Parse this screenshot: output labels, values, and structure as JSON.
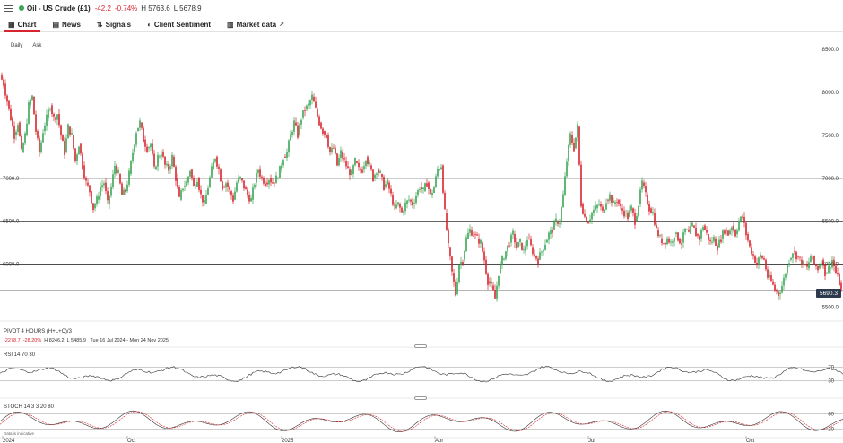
{
  "header": {
    "instrument": "Oil - US Crude (£1)",
    "change": "-42.2",
    "change_pct": "-0.74%",
    "high": "H 5763.6",
    "low": "L 5678.9"
  },
  "tabs": [
    {
      "label": "Chart",
      "icon": "chart-icon",
      "active": true
    },
    {
      "label": "News",
      "icon": "news-icon"
    },
    {
      "label": "Signals",
      "icon": "signals-icon"
    },
    {
      "label": "Client Sentiment",
      "icon": "sentiment-icon"
    },
    {
      "label": "Market data",
      "icon": "market-data-icon",
      "external": true
    }
  ],
  "modes": {
    "daily": "Daily",
    "ask": "Ask"
  },
  "price_tag": "5690.3",
  "pivot": {
    "title": "PIVOT  4 HOURS  (H+L+C)/3",
    "change": "-2278.7",
    "change_pct": "-28.20%",
    "high": "H 8246.2",
    "low": "L 5485.9",
    "range": "Tue 16 Jul 2024 - Mon 24 Nov 2025"
  },
  "rsi": {
    "label": "RSI  14  70  30",
    "levels": [
      "70",
      "30"
    ]
  },
  "stoch": {
    "label": "STOCH  14  3  3  20  80",
    "levels": [
      "80",
      "20"
    ]
  },
  "footer": {
    "note": "Data is indicative"
  },
  "colors": {
    "up": "#3aa655",
    "down": "#d8242c",
    "accent": "#d8242c",
    "tag": "#2d3a4e"
  },
  "chart_data": {
    "type": "candlestick",
    "y_ticks": [
      "8500.0",
      "8000.0",
      "7500.0",
      "7000.0",
      "6500.0",
      "6000.0",
      "5500.0"
    ],
    "ylim": [
      5400,
      8700
    ],
    "horizontal_lines": [
      {
        "value": 7000,
        "label": "7000.0"
      },
      {
        "value": 6500,
        "label": "6500.0"
      },
      {
        "value": 6000,
        "label": "6000.0"
      },
      {
        "value": 5700,
        "label": ""
      }
    ],
    "x_labels": [
      "2024",
      "Oct",
      "2025",
      "Apr",
      "Jul",
      "Oct"
    ],
    "close_path": [
      [
        0,
        8200
      ],
      [
        4,
        8100
      ],
      [
        8,
        7900
      ],
      [
        12,
        7700
      ],
      [
        16,
        7500
      ],
      [
        20,
        7650
      ],
      [
        24,
        7300
      ],
      [
        28,
        7500
      ],
      [
        32,
        7850
      ],
      [
        36,
        7950
      ],
      [
        40,
        7550
      ],
      [
        44,
        7300
      ],
      [
        48,
        7550
      ],
      [
        52,
        7700
      ],
      [
        56,
        7850
      ],
      [
        60,
        7700
      ],
      [
        64,
        7750
      ],
      [
        68,
        7500
      ],
      [
        72,
        7300
      ],
      [
        76,
        7600
      ],
      [
        80,
        7500
      ],
      [
        84,
        7200
      ],
      [
        88,
        7400
      ],
      [
        92,
        7150
      ],
      [
        96,
        6950
      ],
      [
        100,
        6850
      ],
      [
        104,
        6650
      ],
      [
        108,
        6750
      ],
      [
        112,
        6900
      ],
      [
        116,
        6950
      ],
      [
        120,
        6700
      ],
      [
        124,
        6900
      ],
      [
        128,
        7150
      ],
      [
        132,
        7050
      ],
      [
        136,
        6800
      ],
      [
        140,
        6850
      ],
      [
        144,
        7050
      ],
      [
        148,
        7300
      ],
      [
        152,
        7550
      ],
      [
        156,
        7650
      ],
      [
        160,
        7450
      ],
      [
        164,
        7350
      ],
      [
        168,
        7400
      ],
      [
        172,
        7100
      ],
      [
        176,
        7250
      ],
      [
        180,
        7300
      ],
      [
        184,
        7150
      ],
      [
        188,
        7100
      ],
      [
        192,
        7250
      ],
      [
        196,
        7000
      ],
      [
        200,
        6750
      ],
      [
        204,
        6900
      ],
      [
        208,
        6950
      ],
      [
        212,
        7100
      ],
      [
        216,
        6900
      ],
      [
        220,
        7000
      ],
      [
        224,
        6800
      ],
      [
        228,
        6700
      ],
      [
        232,
        6900
      ],
      [
        236,
        7100
      ],
      [
        240,
        7250
      ],
      [
        244,
        7100
      ],
      [
        248,
        6900
      ],
      [
        252,
        6950
      ],
      [
        256,
        6850
      ],
      [
        260,
        6750
      ],
      [
        264,
        6950
      ],
      [
        268,
        7000
      ],
      [
        272,
        6900
      ],
      [
        276,
        6800
      ],
      [
        280,
        6750
      ],
      [
        284,
        6950
      ],
      [
        288,
        7100
      ],
      [
        292,
        7000
      ],
      [
        296,
        6950
      ],
      [
        300,
        7000
      ],
      [
        304,
        6950
      ],
      [
        308,
        7000
      ],
      [
        312,
        7100
      ],
      [
        316,
        7250
      ],
      [
        320,
        7300
      ],
      [
        324,
        7500
      ],
      [
        328,
        7650
      ],
      [
        332,
        7500
      ],
      [
        336,
        7700
      ],
      [
        340,
        7800
      ],
      [
        344,
        7850
      ],
      [
        348,
        7950
      ],
      [
        352,
        7800
      ],
      [
        356,
        7650
      ],
      [
        360,
        7550
      ],
      [
        364,
        7500
      ],
      [
        368,
        7300
      ],
      [
        372,
        7350
      ],
      [
        376,
        7150
      ],
      [
        380,
        7300
      ],
      [
        384,
        7200
      ],
      [
        388,
        7100
      ],
      [
        392,
        7050
      ],
      [
        396,
        7200
      ],
      [
        400,
        7100
      ],
      [
        404,
        7100
      ],
      [
        408,
        7250
      ],
      [
        412,
        7150
      ],
      [
        416,
        7000
      ],
      [
        420,
        7100
      ],
      [
        424,
        7050
      ],
      [
        428,
        6900
      ],
      [
        432,
        6950
      ],
      [
        436,
        6800
      ],
      [
        440,
        6650
      ],
      [
        444,
        6700
      ],
      [
        448,
        6600
      ],
      [
        452,
        6700
      ],
      [
        456,
        6750
      ],
      [
        460,
        6700
      ],
      [
        464,
        6800
      ],
      [
        468,
        6900
      ],
      [
        472,
        6850
      ],
      [
        476,
        6950
      ],
      [
        480,
        6800
      ],
      [
        484,
        6900
      ],
      [
        488,
        7100
      ],
      [
        492,
        7150
      ],
      [
        496,
        6600
      ],
      [
        500,
        6200
      ],
      [
        504,
        5900
      ],
      [
        508,
        5650
      ],
      [
        512,
        6000
      ],
      [
        516,
        6050
      ],
      [
        520,
        6300
      ],
      [
        524,
        6400
      ],
      [
        528,
        6350
      ],
      [
        532,
        6300
      ],
      [
        536,
        6250
      ],
      [
        540,
        6050
      ],
      [
        544,
        5800
      ],
      [
        548,
        5750
      ],
      [
        552,
        5600
      ],
      [
        556,
        5900
      ],
      [
        560,
        6050
      ],
      [
        564,
        6150
      ],
      [
        568,
        6250
      ],
      [
        572,
        6350
      ],
      [
        576,
        6200
      ],
      [
        580,
        6250
      ],
      [
        584,
        6150
      ],
      [
        588,
        6300
      ],
      [
        592,
        6200
      ],
      [
        596,
        6100
      ],
      [
        600,
        6050
      ],
      [
        604,
        6150
      ],
      [
        608,
        6250
      ],
      [
        612,
        6350
      ],
      [
        616,
        6400
      ],
      [
        620,
        6500
      ],
      [
        624,
        6500
      ],
      [
        628,
        6800
      ],
      [
        632,
        7200
      ],
      [
        636,
        7500
      ],
      [
        640,
        7350
      ],
      [
        644,
        7600
      ],
      [
        648,
        6700
      ],
      [
        652,
        6550
      ],
      [
        656,
        6500
      ],
      [
        660,
        6600
      ],
      [
        664,
        6650
      ],
      [
        668,
        6700
      ],
      [
        672,
        6600
      ],
      [
        676,
        6750
      ],
      [
        680,
        6800
      ],
      [
        684,
        6700
      ],
      [
        688,
        6750
      ],
      [
        692,
        6650
      ],
      [
        696,
        6600
      ],
      [
        700,
        6550
      ],
      [
        704,
        6650
      ],
      [
        708,
        6500
      ],
      [
        712,
        6700
      ],
      [
        716,
        6950
      ],
      [
        720,
        6800
      ],
      [
        724,
        6650
      ],
      [
        728,
        6600
      ],
      [
        732,
        6400
      ],
      [
        736,
        6300
      ],
      [
        740,
        6250
      ],
      [
        744,
        6300
      ],
      [
        748,
        6250
      ],
      [
        752,
        6350
      ],
      [
        756,
        6300
      ],
      [
        760,
        6250
      ],
      [
        764,
        6400
      ],
      [
        768,
        6350
      ],
      [
        772,
        6450
      ],
      [
        776,
        6350
      ],
      [
        780,
        6300
      ],
      [
        784,
        6450
      ],
      [
        788,
        6350
      ],
      [
        792,
        6250
      ],
      [
        796,
        6300
      ],
      [
        800,
        6200
      ],
      [
        804,
        6300
      ],
      [
        808,
        6400
      ],
      [
        812,
        6350
      ],
      [
        816,
        6450
      ],
      [
        820,
        6350
      ],
      [
        824,
        6500
      ],
      [
        828,
        6550
      ],
      [
        832,
        6350
      ],
      [
        836,
        6200
      ],
      [
        840,
        6100
      ],
      [
        844,
        6000
      ],
      [
        848,
        6100
      ],
      [
        852,
        6050
      ],
      [
        856,
        5850
      ],
      [
        860,
        5800
      ],
      [
        864,
        5700
      ],
      [
        868,
        5650
      ],
      [
        872,
        5750
      ],
      [
        876,
        5900
      ],
      [
        880,
        6050
      ],
      [
        884,
        6150
      ],
      [
        888,
        6100
      ],
      [
        892,
        6050
      ],
      [
        896,
        6000
      ],
      [
        900,
        5950
      ],
      [
        904,
        6100
      ],
      [
        908,
        6000
      ],
      [
        912,
        5950
      ],
      [
        916,
        6050
      ],
      [
        920,
        5900
      ],
      [
        924,
        5950
      ],
      [
        928,
        6050
      ],
      [
        932,
        5900
      ],
      [
        936,
        5780
      ],
      [
        938,
        5690
      ]
    ]
  }
}
